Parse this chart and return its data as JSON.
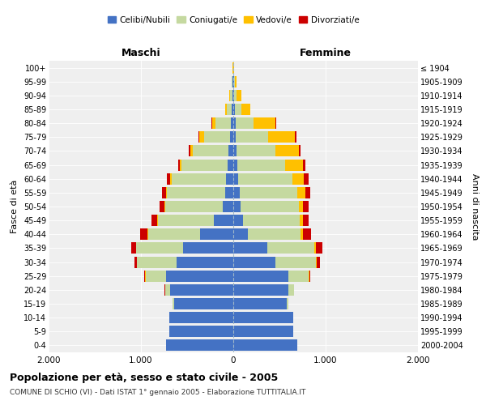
{
  "age_groups": [
    "0-4",
    "5-9",
    "10-14",
    "15-19",
    "20-24",
    "25-29",
    "30-34",
    "35-39",
    "40-44",
    "45-49",
    "50-54",
    "55-59",
    "60-64",
    "65-69",
    "70-74",
    "75-79",
    "80-84",
    "85-89",
    "90-94",
    "95-99",
    "100+"
  ],
  "birth_years": [
    "2000-2004",
    "1995-1999",
    "1990-1994",
    "1985-1989",
    "1980-1984",
    "1975-1979",
    "1970-1974",
    "1965-1969",
    "1960-1964",
    "1955-1959",
    "1950-1954",
    "1945-1949",
    "1940-1944",
    "1935-1939",
    "1930-1934",
    "1925-1929",
    "1920-1924",
    "1915-1919",
    "1910-1914",
    "1905-1909",
    "≤ 1904"
  ],
  "males": {
    "celibe": [
      730,
      690,
      690,
      640,
      680,
      730,
      610,
      540,
      360,
      210,
      115,
      90,
      75,
      65,
      50,
      38,
      28,
      14,
      9,
      5,
      2
    ],
    "coniugato": [
      2,
      2,
      5,
      18,
      58,
      220,
      430,
      510,
      565,
      610,
      625,
      625,
      590,
      495,
      385,
      280,
      162,
      52,
      22,
      10,
      2
    ],
    "vedovo": [
      0,
      0,
      0,
      0,
      1,
      2,
      3,
      4,
      5,
      5,
      8,
      10,
      15,
      20,
      30,
      50,
      40,
      20,
      10,
      4,
      1
    ],
    "divorziato": [
      0,
      0,
      1,
      2,
      5,
      10,
      30,
      50,
      82,
      58,
      52,
      50,
      40,
      20,
      15,
      10,
      5,
      2,
      0,
      0,
      0
    ]
  },
  "females": {
    "nubile": [
      690,
      650,
      645,
      575,
      595,
      595,
      460,
      365,
      155,
      105,
      82,
      72,
      55,
      45,
      35,
      28,
      22,
      16,
      10,
      5,
      2
    ],
    "coniugata": [
      2,
      2,
      5,
      18,
      60,
      222,
      435,
      515,
      575,
      615,
      625,
      625,
      585,
      515,
      425,
      345,
      200,
      68,
      28,
      14,
      2
    ],
    "vedova": [
      0,
      0,
      0,
      1,
      2,
      5,
      10,
      15,
      20,
      30,
      50,
      80,
      120,
      190,
      252,
      295,
      232,
      98,
      48,
      18,
      5
    ],
    "divorziata": [
      0,
      0,
      0,
      2,
      5,
      10,
      35,
      72,
      92,
      62,
      55,
      60,
      60,
      30,
      20,
      15,
      10,
      4,
      2,
      0,
      0
    ]
  },
  "colors": {
    "celibe": "#4472c4",
    "coniugato": "#c5d9a0",
    "vedovo": "#ffc000",
    "divorziato": "#cc0000"
  },
  "xlim": 2000,
  "title": "Popolazione per età, sesso e stato civile - 2005",
  "subtitle": "COMUNE DI SCHIO (VI) - Dati ISTAT 1° gennaio 2005 - Elaborazione TUTTITALIA.IT",
  "ylabel_left": "Fasce di età",
  "ylabel_right": "Anni di nascita",
  "xlabel_maschi": "Maschi",
  "xlabel_femmine": "Femmine",
  "legend_labels": [
    "Celibi/Nubili",
    "Coniugati/e",
    "Vedovi/e",
    "Divorziati/e"
  ],
  "background_color": "#ffffff",
  "plot_bg": "#efefef"
}
